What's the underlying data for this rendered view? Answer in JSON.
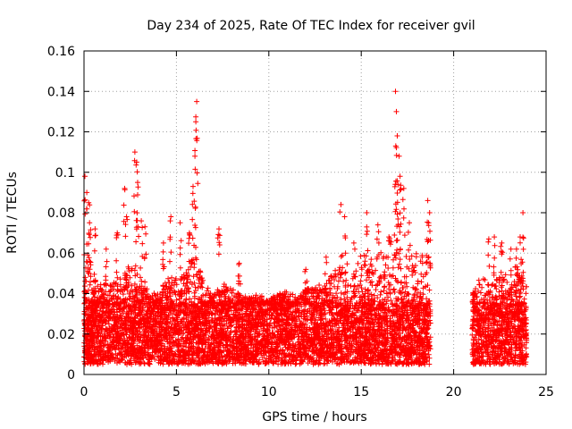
{
  "chart_data": {
    "type": "scatter",
    "title": "Day 234 of 2025, Rate Of TEC Index for receiver gvil",
    "xlabel": "GPS time / hours",
    "ylabel": "ROTI / TECUs",
    "xlim": [
      0,
      25
    ],
    "ylim": [
      0,
      0.16
    ],
    "xticks": [
      "0",
      "5",
      "10",
      "15",
      "20",
      "25"
    ],
    "yticks": [
      "0",
      "0.02",
      "0.04",
      "0.06",
      "0.08",
      "0.1",
      "0.12",
      "0.14",
      "0.16"
    ],
    "grid": true,
    "marker": "+",
    "color": "#ff0000",
    "series": [
      {
        "segments": [
          [
            0,
            18.75
          ],
          [
            21.0,
            23.95
          ]
        ],
        "baseline_range": [
          0.005,
          0.035
        ],
        "envelope": [
          [
            0.0,
            0.045
          ],
          [
            0.2,
            0.062
          ],
          [
            0.5,
            0.05
          ],
          [
            1.0,
            0.045
          ],
          [
            1.5,
            0.045
          ],
          [
            2.0,
            0.05
          ],
          [
            2.5,
            0.055
          ],
          [
            3.0,
            0.045
          ],
          [
            3.5,
            0.043
          ],
          [
            4.0,
            0.04
          ],
          [
            4.5,
            0.048
          ],
          [
            5.0,
            0.048
          ],
          [
            5.5,
            0.05
          ],
          [
            6.0,
            0.06
          ],
          [
            6.5,
            0.045
          ],
          [
            7.0,
            0.04
          ],
          [
            7.5,
            0.045
          ],
          [
            8.0,
            0.043
          ],
          [
            8.5,
            0.04
          ],
          [
            9.0,
            0.038
          ],
          [
            9.5,
            0.04
          ],
          [
            10.0,
            0.037
          ],
          [
            10.5,
            0.04
          ],
          [
            11.0,
            0.042
          ],
          [
            11.5,
            0.038
          ],
          [
            12.0,
            0.042
          ],
          [
            12.5,
            0.045
          ],
          [
            13.0,
            0.045
          ],
          [
            13.5,
            0.05
          ],
          [
            14.0,
            0.06
          ],
          [
            14.5,
            0.055
          ],
          [
            15.0,
            0.06
          ],
          [
            15.5,
            0.058
          ],
          [
            16.0,
            0.06
          ],
          [
            16.5,
            0.065
          ],
          [
            17.0,
            0.068
          ],
          [
            17.5,
            0.058
          ],
          [
            18.0,
            0.06
          ],
          [
            18.75,
            0.06
          ],
          [
            21.0,
            0.04
          ],
          [
            21.5,
            0.05
          ],
          [
            22.0,
            0.045
          ],
          [
            22.5,
            0.05
          ],
          [
            23.0,
            0.05
          ],
          [
            23.5,
            0.055
          ],
          [
            23.95,
            0.05
          ]
        ],
        "spikes": [
          [
            0.05,
            0.098
          ],
          [
            0.15,
            0.09
          ],
          [
            0.25,
            0.085
          ],
          [
            0.3,
            0.075
          ],
          [
            0.6,
            0.072
          ],
          [
            1.2,
            0.062
          ],
          [
            1.8,
            0.07
          ],
          [
            2.2,
            0.092
          ],
          [
            2.3,
            0.078
          ],
          [
            2.75,
            0.11
          ],
          [
            2.85,
            0.105
          ],
          [
            2.9,
            0.095
          ],
          [
            3.1,
            0.076
          ],
          [
            3.3,
            0.073
          ],
          [
            4.3,
            0.065
          ],
          [
            4.7,
            0.078
          ],
          [
            5.2,
            0.075
          ],
          [
            5.7,
            0.07
          ],
          [
            5.9,
            0.093
          ],
          [
            6.0,
            0.108
          ],
          [
            6.05,
            0.125
          ],
          [
            6.1,
            0.135
          ],
          [
            7.3,
            0.072
          ],
          [
            8.4,
            0.055
          ],
          [
            12.0,
            0.052
          ],
          [
            13.1,
            0.058
          ],
          [
            13.9,
            0.084
          ],
          [
            14.1,
            0.078
          ],
          [
            14.6,
            0.065
          ],
          [
            15.3,
            0.08
          ],
          [
            15.9,
            0.074
          ],
          [
            16.5,
            0.068
          ],
          [
            16.85,
            0.14
          ],
          [
            16.9,
            0.13
          ],
          [
            16.95,
            0.118
          ],
          [
            17.05,
            0.108
          ],
          [
            17.1,
            0.098
          ],
          [
            17.3,
            0.092
          ],
          [
            17.6,
            0.075
          ],
          [
            18.6,
            0.086
          ],
          [
            18.7,
            0.08
          ],
          [
            21.9,
            0.067
          ],
          [
            22.2,
            0.068
          ],
          [
            22.6,
            0.065
          ],
          [
            23.1,
            0.062
          ],
          [
            23.4,
            0.062
          ],
          [
            23.6,
            0.068
          ],
          [
            23.75,
            0.08
          ]
        ]
      }
    ]
  }
}
